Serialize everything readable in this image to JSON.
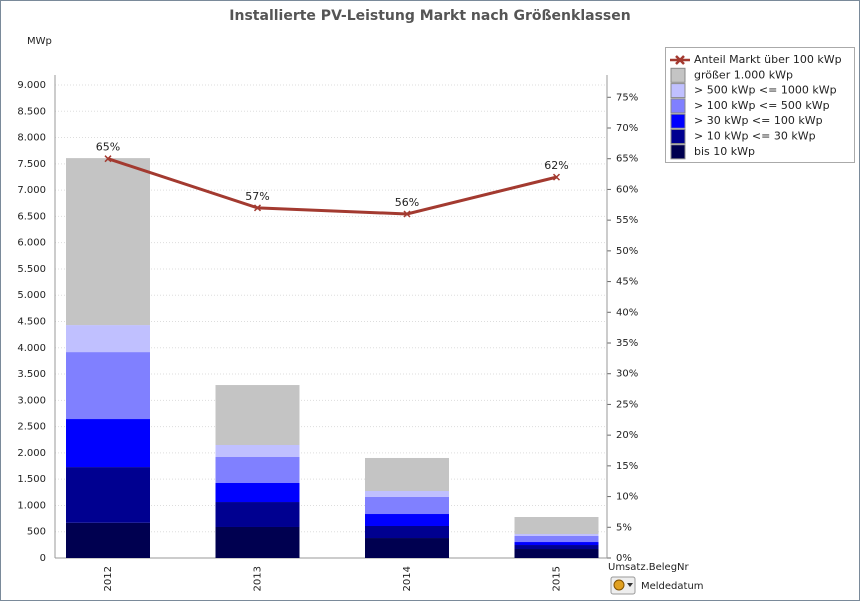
{
  "chart_data": {
    "type": "bar",
    "stacked": true,
    "title": "Installierte PV-Leistung Markt nach Größenklassen",
    "y_axis_label": "MWp",
    "dimension_label": "Umsatz.BelegNr",
    "dimension_button": "Meldedatum",
    "categories": [
      "2012",
      "2013",
      "2014",
      "2015"
    ],
    "series": [
      {
        "name": "bis 10 kWp",
        "color": "#000050",
        "values": [
          670,
          590,
          380,
          171
        ]
      },
      {
        "name": "> 10 kWp <= 30 kWp",
        "color": "#000090",
        "values": [
          1060,
          475,
          229,
          76
        ]
      },
      {
        "name": "> 30 kWp <= 100 kWp",
        "color": "#0000ff",
        "values": [
          914,
          362,
          228,
          57
        ]
      },
      {
        "name": "> 100 kWp <= 500 kWp",
        "color": "#8080ff",
        "values": [
          1274,
          495,
          324,
          115
        ]
      },
      {
        "name": "> 500 kWp <= 1000 kWp",
        "color": "#c0c0ff",
        "values": [
          514,
          228,
          114,
          38
        ]
      },
      {
        "name": "größer 1.000 kWp",
        "color": "#c4c4c4",
        "values": [
          3177,
          1141,
          628,
          323
        ]
      },
      {
        "name": "Anteil Markt über 100 kWp",
        "color": "#a33a30",
        "type": "line",
        "axis": "y2",
        "values": [
          65,
          57,
          56,
          62
        ],
        "value_labels": [
          "65%",
          "57%",
          "56%",
          "62%"
        ]
      }
    ],
    "ylim": [
      0,
      9000
    ],
    "yticks": [
      0,
      500,
      {
        "value": 1000,
        "label": "1.000"
      },
      {
        "value": 1500,
        "label": "1.500"
      },
      {
        "value": 2000,
        "label": "2.000"
      },
      {
        "value": 2500,
        "label": "2.500"
      },
      {
        "value": 3000,
        "label": "3.000"
      },
      {
        "value": 3500,
        "label": "3.500"
      },
      {
        "value": 4000,
        "label": "4.000"
      },
      {
        "value": 4500,
        "label": "4.500"
      },
      {
        "value": 5000,
        "label": "5.000"
      },
      {
        "value": 5500,
        "label": "5.500"
      },
      {
        "value": 6000,
        "label": "6.000"
      },
      {
        "value": 6500,
        "label": "6.500"
      },
      {
        "value": 7000,
        "label": "7.000"
      },
      {
        "value": 7500,
        "label": "7.500"
      },
      {
        "value": 8000,
        "label": "8.000"
      },
      {
        "value": 8500,
        "label": "8.500"
      },
      {
        "value": 9000,
        "label": "9.000"
      }
    ],
    "y2lim": [
      0,
      77
    ],
    "y2ticks": [
      {
        "value": 0,
        "label": "0%"
      },
      {
        "value": 5,
        "label": "5%"
      },
      {
        "value": 10,
        "label": "10%"
      },
      {
        "value": 15,
        "label": "15%"
      },
      {
        "value": 20,
        "label": "20%"
      },
      {
        "value": 25,
        "label": "25%"
      },
      {
        "value": 30,
        "label": "30%"
      },
      {
        "value": 35,
        "label": "35%"
      },
      {
        "value": 40,
        "label": "40%"
      },
      {
        "value": 45,
        "label": "45%"
      },
      {
        "value": 50,
        "label": "50%"
      },
      {
        "value": 55,
        "label": "55%"
      },
      {
        "value": 60,
        "label": "60%"
      },
      {
        "value": 65,
        "label": "65%"
      },
      {
        "value": 70,
        "label": "70%"
      },
      {
        "value": 75,
        "label": "75%"
      }
    ],
    "grid": true,
    "legend": "top-right"
  }
}
